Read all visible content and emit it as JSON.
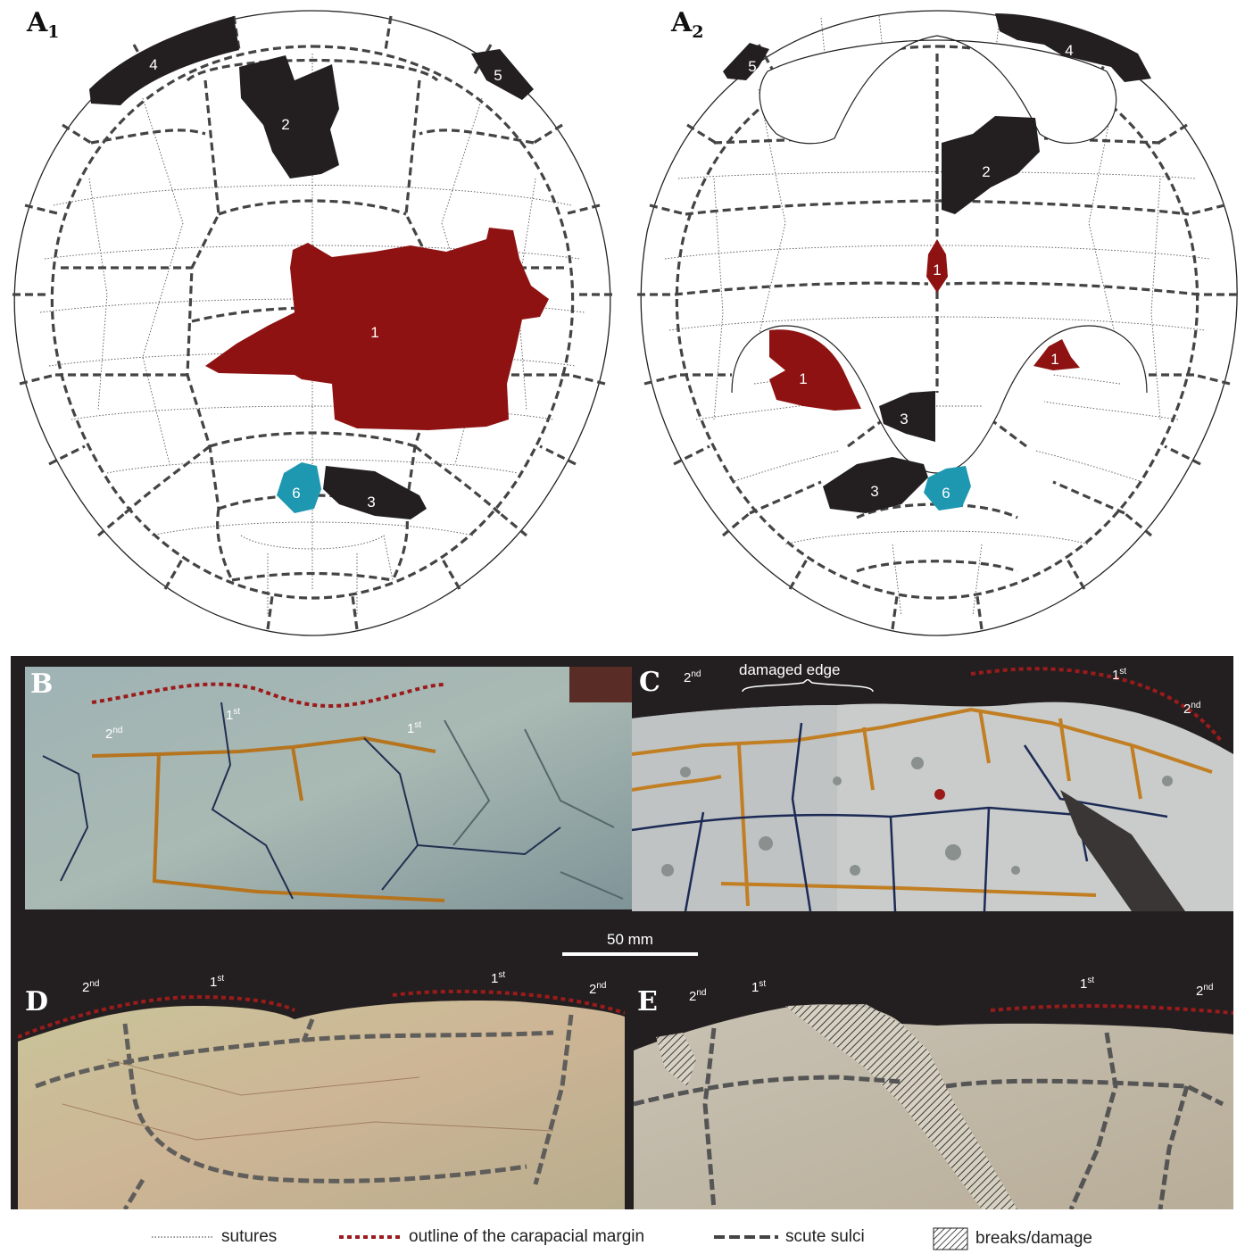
{
  "panels": {
    "a1": {
      "letter": "A",
      "sub": "1"
    },
    "a2": {
      "letter": "A",
      "sub": "2"
    },
    "b": "B",
    "c": "C",
    "d": "D",
    "e": "E"
  },
  "fragments_a1": [
    "1",
    "2",
    "3",
    "4",
    "5",
    "6"
  ],
  "fragments_a2": [
    "1",
    "1",
    "1",
    "2",
    "3",
    "3",
    "4",
    "5",
    "6"
  ],
  "colors": {
    "fragment_red": "#8f1212",
    "fragment_black": "#231f20",
    "fragment_blue": "#1e98b0",
    "margin_outline": "#9b1b1b",
    "sulci": "#444444"
  },
  "ordinals": {
    "first": "1",
    "second": "2",
    "st": "st",
    "nd": "nd"
  },
  "annotation_c": "damaged edge",
  "scale_label": "50 mm",
  "legend": {
    "sutures": "sutures",
    "margin": "outline of the carapacial margin",
    "sulci": "scute sulci",
    "damage": "breaks/damage"
  }
}
